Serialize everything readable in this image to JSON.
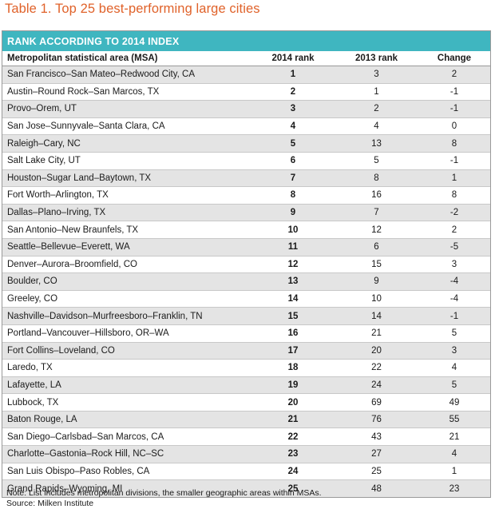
{
  "title": "Table 1. Top 25 best-performing large cities",
  "band": "RANK ACCORDING TO 2014 INDEX",
  "columns": [
    "Metropolitan statistical area (MSA)",
    "2014 rank",
    "2013 rank",
    "Change"
  ],
  "rows": [
    [
      "San Francisco–San Mateo–Redwood City, CA",
      "1",
      "3",
      "2"
    ],
    [
      "Austin–Round Rock–San Marcos, TX",
      "2",
      "1",
      "-1"
    ],
    [
      "Provo–Orem, UT",
      "3",
      "2",
      "-1"
    ],
    [
      "San Jose–Sunnyvale–Santa Clara, CA",
      "4",
      "4",
      "0"
    ],
    [
      "Raleigh–Cary, NC",
      "5",
      "13",
      "8"
    ],
    [
      "Salt Lake City, UT",
      "6",
      "5",
      "-1"
    ],
    [
      "Houston–Sugar Land–Baytown, TX",
      "7",
      "8",
      "1"
    ],
    [
      "Fort Worth–Arlington, TX",
      "8",
      "16",
      "8"
    ],
    [
      "Dallas–Plano–Irving, TX",
      "9",
      "7",
      "-2"
    ],
    [
      "San Antonio–New Braunfels, TX",
      "10",
      "12",
      "2"
    ],
    [
      "Seattle–Bellevue–Everett, WA",
      "11",
      "6",
      "-5"
    ],
    [
      "Denver–Aurora–Broomfield, CO",
      "12",
      "15",
      "3"
    ],
    [
      "Boulder, CO",
      "13",
      "9",
      "-4"
    ],
    [
      "Greeley, CO",
      "14",
      "10",
      "-4"
    ],
    [
      "Nashville–Davidson–Murfreesboro–Franklin, TN",
      "15",
      "14",
      "-1"
    ],
    [
      "Portland–Vancouver–Hillsboro, OR–WA",
      "16",
      "21",
      "5"
    ],
    [
      "Fort Collins–Loveland, CO",
      "17",
      "20",
      "3"
    ],
    [
      "Laredo, TX",
      "18",
      "22",
      "4"
    ],
    [
      "Lafayette, LA",
      "19",
      "24",
      "5"
    ],
    [
      "Lubbock, TX",
      "20",
      "69",
      "49"
    ],
    [
      "Baton Rouge, LA",
      "21",
      "76",
      "55"
    ],
    [
      "San Diego–Carlsbad–San Marcos, CA",
      "22",
      "43",
      "21"
    ],
    [
      "Charlotte–Gastonia–Rock Hill, NC–SC",
      "23",
      "27",
      "4"
    ],
    [
      "San Luis Obispo–Paso Robles, CA",
      "24",
      "25",
      "1"
    ],
    [
      "Grand Rapids–Wyoming, MI",
      "25",
      "48",
      "23"
    ]
  ],
  "footer": {
    "note": "Note: List includes metropolitan divisions, the smaller geographic areas within MSAs.",
    "source": "Source: Milken Institute"
  },
  "colors": {
    "title": "#e0622a",
    "band": "#3fb6c0",
    "row_shade": "#e4e4e4"
  }
}
